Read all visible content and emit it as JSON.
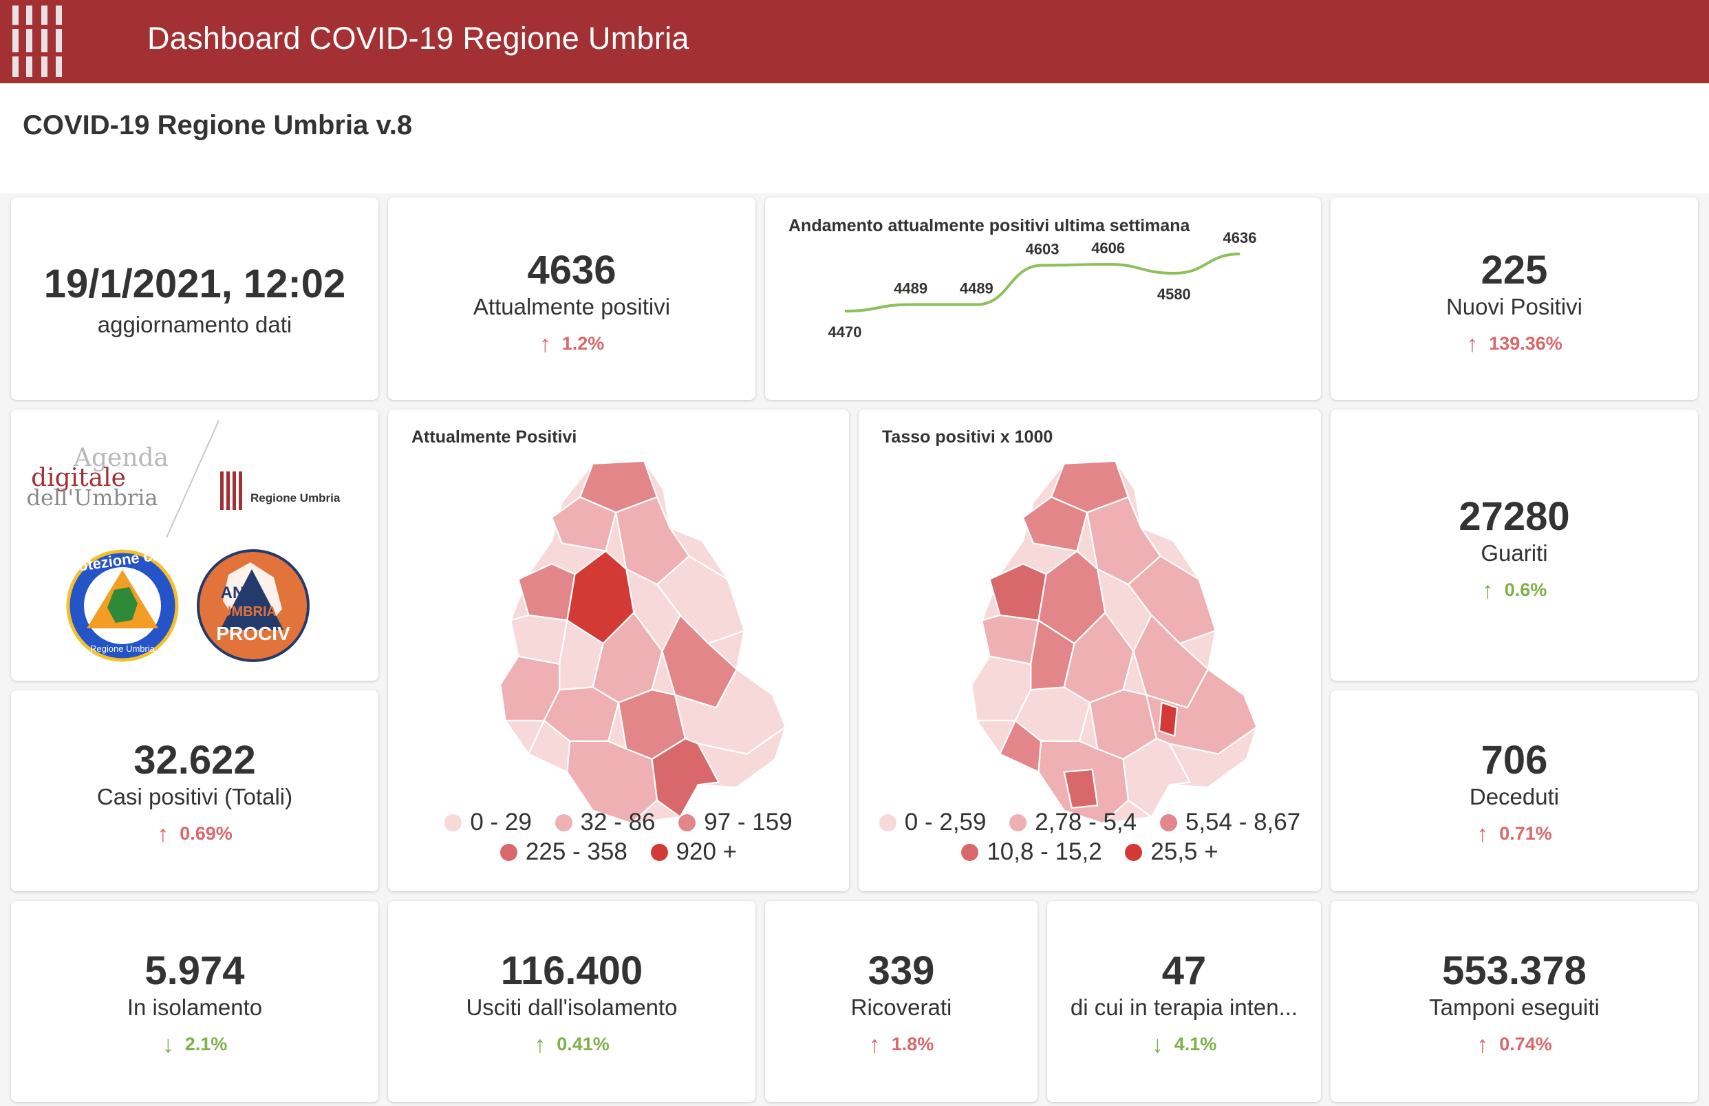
{
  "app": {
    "title": "Dashboard COVID-19 Regione Umbria"
  },
  "page": {
    "title": "COVID-19 Regione Umbria v.8"
  },
  "update": {
    "value": "19/1/2021, 12:02",
    "label": "aggiornamento dati"
  },
  "kpis": {
    "attualmente_positivi": {
      "value": "4636",
      "label": "Attualmente positivi",
      "delta": "1.2%",
      "direction": "up"
    },
    "nuovi_positivi": {
      "value": "225",
      "label": "Nuovi Positivi",
      "delta": "139.36%",
      "direction": "up"
    },
    "guariti": {
      "value": "27280",
      "label": "Guariti",
      "delta": "0.6%",
      "direction": "up"
    },
    "casi_totali": {
      "value": "32.622",
      "label": "Casi positivi (Totali)",
      "delta": "0.69%",
      "direction": "up"
    },
    "deceduti": {
      "value": "706",
      "label": "Deceduti",
      "delta": "0.71%",
      "direction": "up"
    },
    "isolamento": {
      "value": "5.974",
      "label": "In isolamento",
      "delta": "2.1%",
      "direction": "down"
    },
    "usciti": {
      "value": "116.400",
      "label": "Usciti dall'isolamento",
      "delta": "0.41%",
      "direction": "up"
    },
    "ricoverati": {
      "value": "339",
      "label": "Ricoverati",
      "delta": "1.8%",
      "direction": "up"
    },
    "terapia": {
      "value": "47",
      "label": "di cui in terapia inten...",
      "delta": "4.1%",
      "direction": "down"
    },
    "tamponi": {
      "value": "553.378",
      "label": "Tamponi eseguiti",
      "delta": "0.74%",
      "direction": "up"
    }
  },
  "colors": {
    "brand": "#a33033",
    "up": "#d9686b",
    "down": "#7fb04a",
    "line": "#8dbf5a",
    "scale": [
      "#f7d9da",
      "#eeb0b2",
      "#e38689",
      "#d9686b",
      "#d33a35"
    ]
  },
  "logos": {
    "agenda": {
      "line1": "Agenda",
      "line2": "digitale",
      "line3": "dell'Umbria"
    },
    "regione": "Regione Umbria",
    "protezione": {
      "top": "Protezione civile",
      "bottom": "Regione Umbria"
    },
    "anci": {
      "line1": "ANCI",
      "line2": "UMBRIA",
      "line3": "PROCIV"
    }
  },
  "maps": {
    "positivi": {
      "title": "Attualmente Positivi",
      "legend": [
        "0 - 29",
        "32 - 86",
        "97 - 159",
        "225 - 358",
        "920 +"
      ]
    },
    "tasso": {
      "title": "Tasso positivi x 1000",
      "legend": [
        "0 - 2,59",
        "2,78 - 5,4",
        "5,54 - 8,67",
        "10,8 - 15,2",
        "25,5 +"
      ]
    }
  },
  "chart_data": {
    "type": "line",
    "title": "Andamento attualmente positivi ultima settimana",
    "values": [
      4470,
      4489,
      4489,
      4603,
      4606,
      4580,
      4636
    ],
    "labels": [
      "4470",
      "4489",
      "4489",
      "4603",
      "4606",
      "4580",
      "4636"
    ],
    "ylim": [
      4440,
      4660
    ]
  }
}
